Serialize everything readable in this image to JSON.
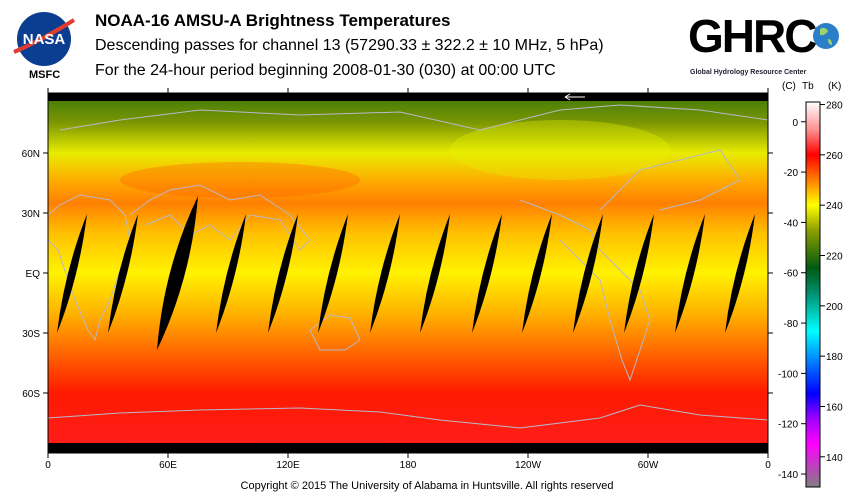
{
  "header": {
    "title": "NOAA-16 AMSU-A Brightness Temperatures",
    "subtitle": "Descending passes for channel 13 (57290.33 ± 322.2 ± 10 MHz, 5 hPa)",
    "period": "For the 24-hour period beginning 2008-01-30 (030) at 00:00 UTC",
    "left_logo_text": "NASA",
    "left_logo_caption": "MSFC",
    "right_logo_text": "GHRC",
    "right_logo_caption": "Global Hydrology Resource Center"
  },
  "footer": {
    "copyright": "Copyright © 2015 The University of Alabama in Huntsville.  All rights reserved"
  },
  "chart_data": {
    "type": "heatmap",
    "title": "NOAA-16 AMSU-A Brightness Temperatures",
    "projection": "equirectangular",
    "x_ticks": [
      "0",
      "60E",
      "120E",
      "180",
      "120W",
      "60W",
      "0"
    ],
    "y_ticks": [
      "60N",
      "30N",
      "EQ",
      "30S",
      "60S"
    ],
    "colorbar": {
      "label_c": "(C)",
      "label_mid": "Tb",
      "label_k": "(K)",
      "k_ticks": [
        "280",
        "260",
        "240",
        "220",
        "200",
        "180",
        "160",
        "140"
      ],
      "k_tick_values": [
        280,
        260,
        240,
        220,
        200,
        180,
        160,
        140
      ],
      "c_ticks": [
        "0",
        "-20",
        "-40",
        "-60",
        "-80",
        "-100",
        "-120",
        "-140"
      ],
      "c_tick_values": [
        0,
        -20,
        -40,
        -60,
        -80,
        -100,
        -120,
        -140
      ],
      "range_k": [
        128,
        281
      ],
      "stops": [
        {
          "k": 281,
          "color": "#ffffff"
        },
        {
          "k": 270,
          "color": "#ff9090"
        },
        {
          "k": 260,
          "color": "#ff0000"
        },
        {
          "k": 250,
          "color": "#ff8000"
        },
        {
          "k": 240,
          "color": "#ffff00"
        },
        {
          "k": 230,
          "color": "#8fa000"
        },
        {
          "k": 215,
          "color": "#005a10"
        },
        {
          "k": 205,
          "color": "#009070"
        },
        {
          "k": 190,
          "color": "#00ffff"
        },
        {
          "k": 175,
          "color": "#0060ff"
        },
        {
          "k": 165,
          "color": "#0000ff"
        },
        {
          "k": 155,
          "color": "#a000ff"
        },
        {
          "k": 145,
          "color": "#ff00ff"
        },
        {
          "k": 128,
          "color": "#808080"
        }
      ]
    },
    "lat_profile_k": [
      {
        "lat": 88,
        "k": 222
      },
      {
        "lat": 75,
        "k": 228
      },
      {
        "lat": 60,
        "k": 238
      },
      {
        "lat": 45,
        "k": 247
      },
      {
        "lat": 35,
        "k": 250
      },
      {
        "lat": 20,
        "k": 245
      },
      {
        "lat": 0,
        "k": 241
      },
      {
        "lat": -20,
        "k": 246
      },
      {
        "lat": -40,
        "k": 252
      },
      {
        "lat": -60,
        "k": 258
      },
      {
        "lat": -88,
        "k": 262
      }
    ],
    "data_gaps_descending_swaths_lon_at_30S": [
      4.5,
      30,
      54.5,
      84,
      110,
      135,
      161,
      186,
      212,
      237,
      262.5,
      288,
      313.5,
      338.5
    ]
  }
}
